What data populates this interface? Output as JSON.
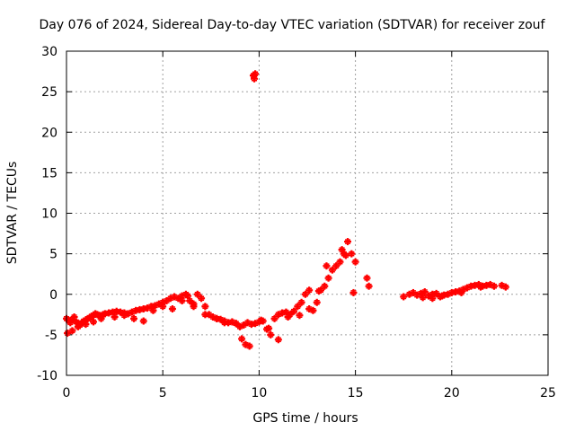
{
  "chart_data": {
    "type": "scatter",
    "title": "Day 076 of 2024, Sidereal Day-to-day VTEC variation (SDTVAR) for receiver zouf",
    "xlabel": "GPS time / hours",
    "ylabel": "SDTVAR / TECUs",
    "xlim": [
      0,
      25
    ],
    "ylim": [
      -10,
      30
    ],
    "xticks": [
      0,
      5,
      10,
      15,
      20,
      25
    ],
    "yticks": [
      -10,
      -5,
      0,
      5,
      10,
      15,
      20,
      25,
      30
    ],
    "grid": true,
    "marker": "+",
    "color": "#ff0000",
    "series": [
      {
        "name": "SDTVAR",
        "x": [
          0.0,
          0.1,
          0.2,
          0.3,
          0.4,
          0.5,
          0.6,
          0.7,
          0.8,
          0.9,
          1.0,
          1.1,
          1.2,
          1.3,
          1.4,
          1.5,
          1.6,
          1.7,
          1.8,
          1.9,
          2.0,
          2.2,
          2.4,
          2.6,
          2.8,
          3.0,
          3.2,
          3.4,
          3.6,
          3.8,
          4.0,
          4.2,
          4.4,
          4.6,
          4.8,
          5.0,
          5.2,
          5.4,
          5.6,
          5.8,
          6.0,
          6.2,
          6.4,
          6.6,
          6.8,
          7.0,
          7.2,
          7.4,
          7.6,
          7.8,
          8.0,
          8.2,
          8.4,
          8.6,
          8.8,
          9.0,
          9.2,
          9.4,
          9.6,
          9.8,
          10.0,
          10.2,
          10.4,
          10.6,
          10.8,
          11.0,
          11.2,
          11.4,
          11.6,
          11.8,
          12.0,
          12.2,
          12.4,
          12.6,
          12.8,
          13.0,
          13.2,
          13.4,
          13.6,
          13.8,
          14.0,
          14.2,
          14.4,
          14.6,
          14.8,
          15.0,
          15.6,
          15.7,
          9.7,
          9.8,
          9.75,
          0.05,
          0.3,
          0.6,
          1.0,
          1.4,
          1.8,
          2.5,
          3.0,
          3.5,
          4.0,
          4.5,
          5.0,
          5.5,
          6.0,
          6.3,
          6.6,
          7.2,
          7.8,
          8.2,
          8.8,
          9.1,
          9.3,
          9.5,
          10.1,
          10.5,
          11.0,
          11.5,
          12.1,
          12.6,
          13.1,
          13.5,
          14.3,
          14.5,
          14.9,
          17.5,
          17.8,
          18.0,
          18.2,
          18.4,
          18.6,
          18.8,
          19.0,
          19.2,
          19.4,
          19.6,
          19.8,
          20.0,
          20.2,
          20.4,
          20.6,
          20.8,
          21.0,
          21.2,
          21.4,
          21.6,
          21.8,
          22.0,
          22.2,
          22.6,
          22.8,
          18.5,
          19.0,
          19.5,
          20.5,
          21.5
        ],
        "y": [
          -3.0,
          -3.2,
          -3.5,
          -3.1,
          -2.8,
          -3.4,
          -3.6,
          -3.8,
          -3.5,
          -3.3,
          -3.2,
          -3.0,
          -2.9,
          -2.7,
          -2.6,
          -2.4,
          -2.5,
          -2.6,
          -2.7,
          -2.5,
          -2.4,
          -2.3,
          -2.2,
          -2.1,
          -2.2,
          -2.3,
          -2.4,
          -2.2,
          -2.0,
          -1.9,
          -1.8,
          -1.7,
          -1.5,
          -1.4,
          -1.2,
          -1.0,
          -0.8,
          -0.5,
          -0.3,
          -0.5,
          -0.2,
          0.0,
          -0.8,
          -1.2,
          0.0,
          -0.5,
          -1.5,
          -2.5,
          -2.8,
          -3.0,
          -3.1,
          -3.3,
          -3.5,
          -3.4,
          -3.6,
          -4.0,
          -3.8,
          -3.5,
          -3.7,
          -3.6,
          -3.4,
          -3.3,
          -4.3,
          -5.0,
          -3.0,
          -2.5,
          -2.3,
          -2.2,
          -2.5,
          -2.1,
          -1.5,
          -1.0,
          0.0,
          0.5,
          -2.0,
          -1.0,
          0.5,
          1.0,
          2.0,
          3.0,
          3.5,
          4.0,
          5.0,
          6.5,
          5.0,
          4.0,
          2.0,
          1.0,
          27.0,
          27.2,
          26.6,
          -4.8,
          -4.5,
          -4.0,
          -3.7,
          -3.4,
          -3.0,
          -2.8,
          -2.6,
          -3.0,
          -3.3,
          -2.0,
          -1.5,
          -1.8,
          -0.8,
          -0.2,
          -1.5,
          -2.5,
          -3.0,
          -3.5,
          -3.6,
          -5.5,
          -6.2,
          -6.4,
          -3.2,
          -4.2,
          -5.6,
          -2.8,
          -2.6,
          -1.8,
          0.4,
          3.5,
          5.5,
          4.8,
          0.2,
          -0.3,
          0.0,
          0.2,
          -0.1,
          0.1,
          0.3,
          -0.2,
          0.0,
          0.1,
          -0.3,
          -0.1,
          0.0,
          0.2,
          0.3,
          0.4,
          0.6,
          0.8,
          1.0,
          1.1,
          1.2,
          1.0,
          1.1,
          1.2,
          1.0,
          1.1,
          0.9,
          -0.4,
          -0.5,
          -0.2,
          0.2,
          0.9
        ]
      }
    ]
  }
}
